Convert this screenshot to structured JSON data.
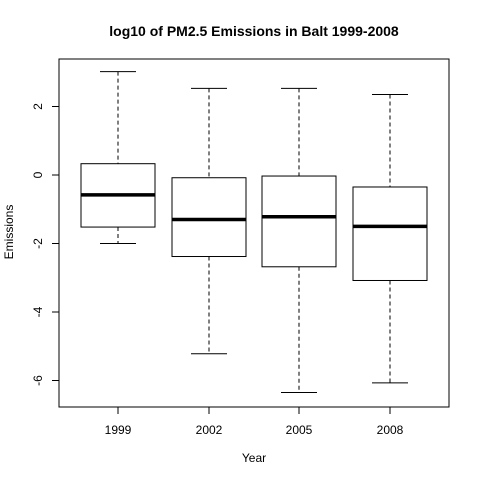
{
  "chart_data": {
    "type": "boxplot",
    "title": "log10 of PM2.5 Emissions in Balt 1999-2008",
    "xlabel": "Year",
    "ylabel": "Emissions",
    "categories": [
      "1999",
      "2002",
      "2005",
      "2008"
    ],
    "yticks": [
      -6,
      -4,
      -2,
      0,
      2
    ],
    "ylim": [
      -6.75,
      3.4
    ],
    "grid": false,
    "legend": "none",
    "boxes": [
      {
        "category": "1999",
        "whisker_low": -2.0,
        "q1": -1.52,
        "median": -0.58,
        "q3": 0.33,
        "whisker_high": 3.02
      },
      {
        "category": "2002",
        "whisker_low": -5.22,
        "q1": -2.38,
        "median": -1.3,
        "q3": -0.08,
        "whisker_high": 2.53
      },
      {
        "category": "2005",
        "whisker_low": -6.35,
        "q1": -2.68,
        "median": -1.22,
        "q3": -0.03,
        "whisker_high": 2.53
      },
      {
        "category": "2008",
        "whisker_low": -6.07,
        "q1": -3.08,
        "median": -1.5,
        "q3": -0.35,
        "whisker_high": 2.35
      }
    ],
    "colors": {
      "box_stroke": "#000000",
      "background": "#ffffff"
    }
  }
}
